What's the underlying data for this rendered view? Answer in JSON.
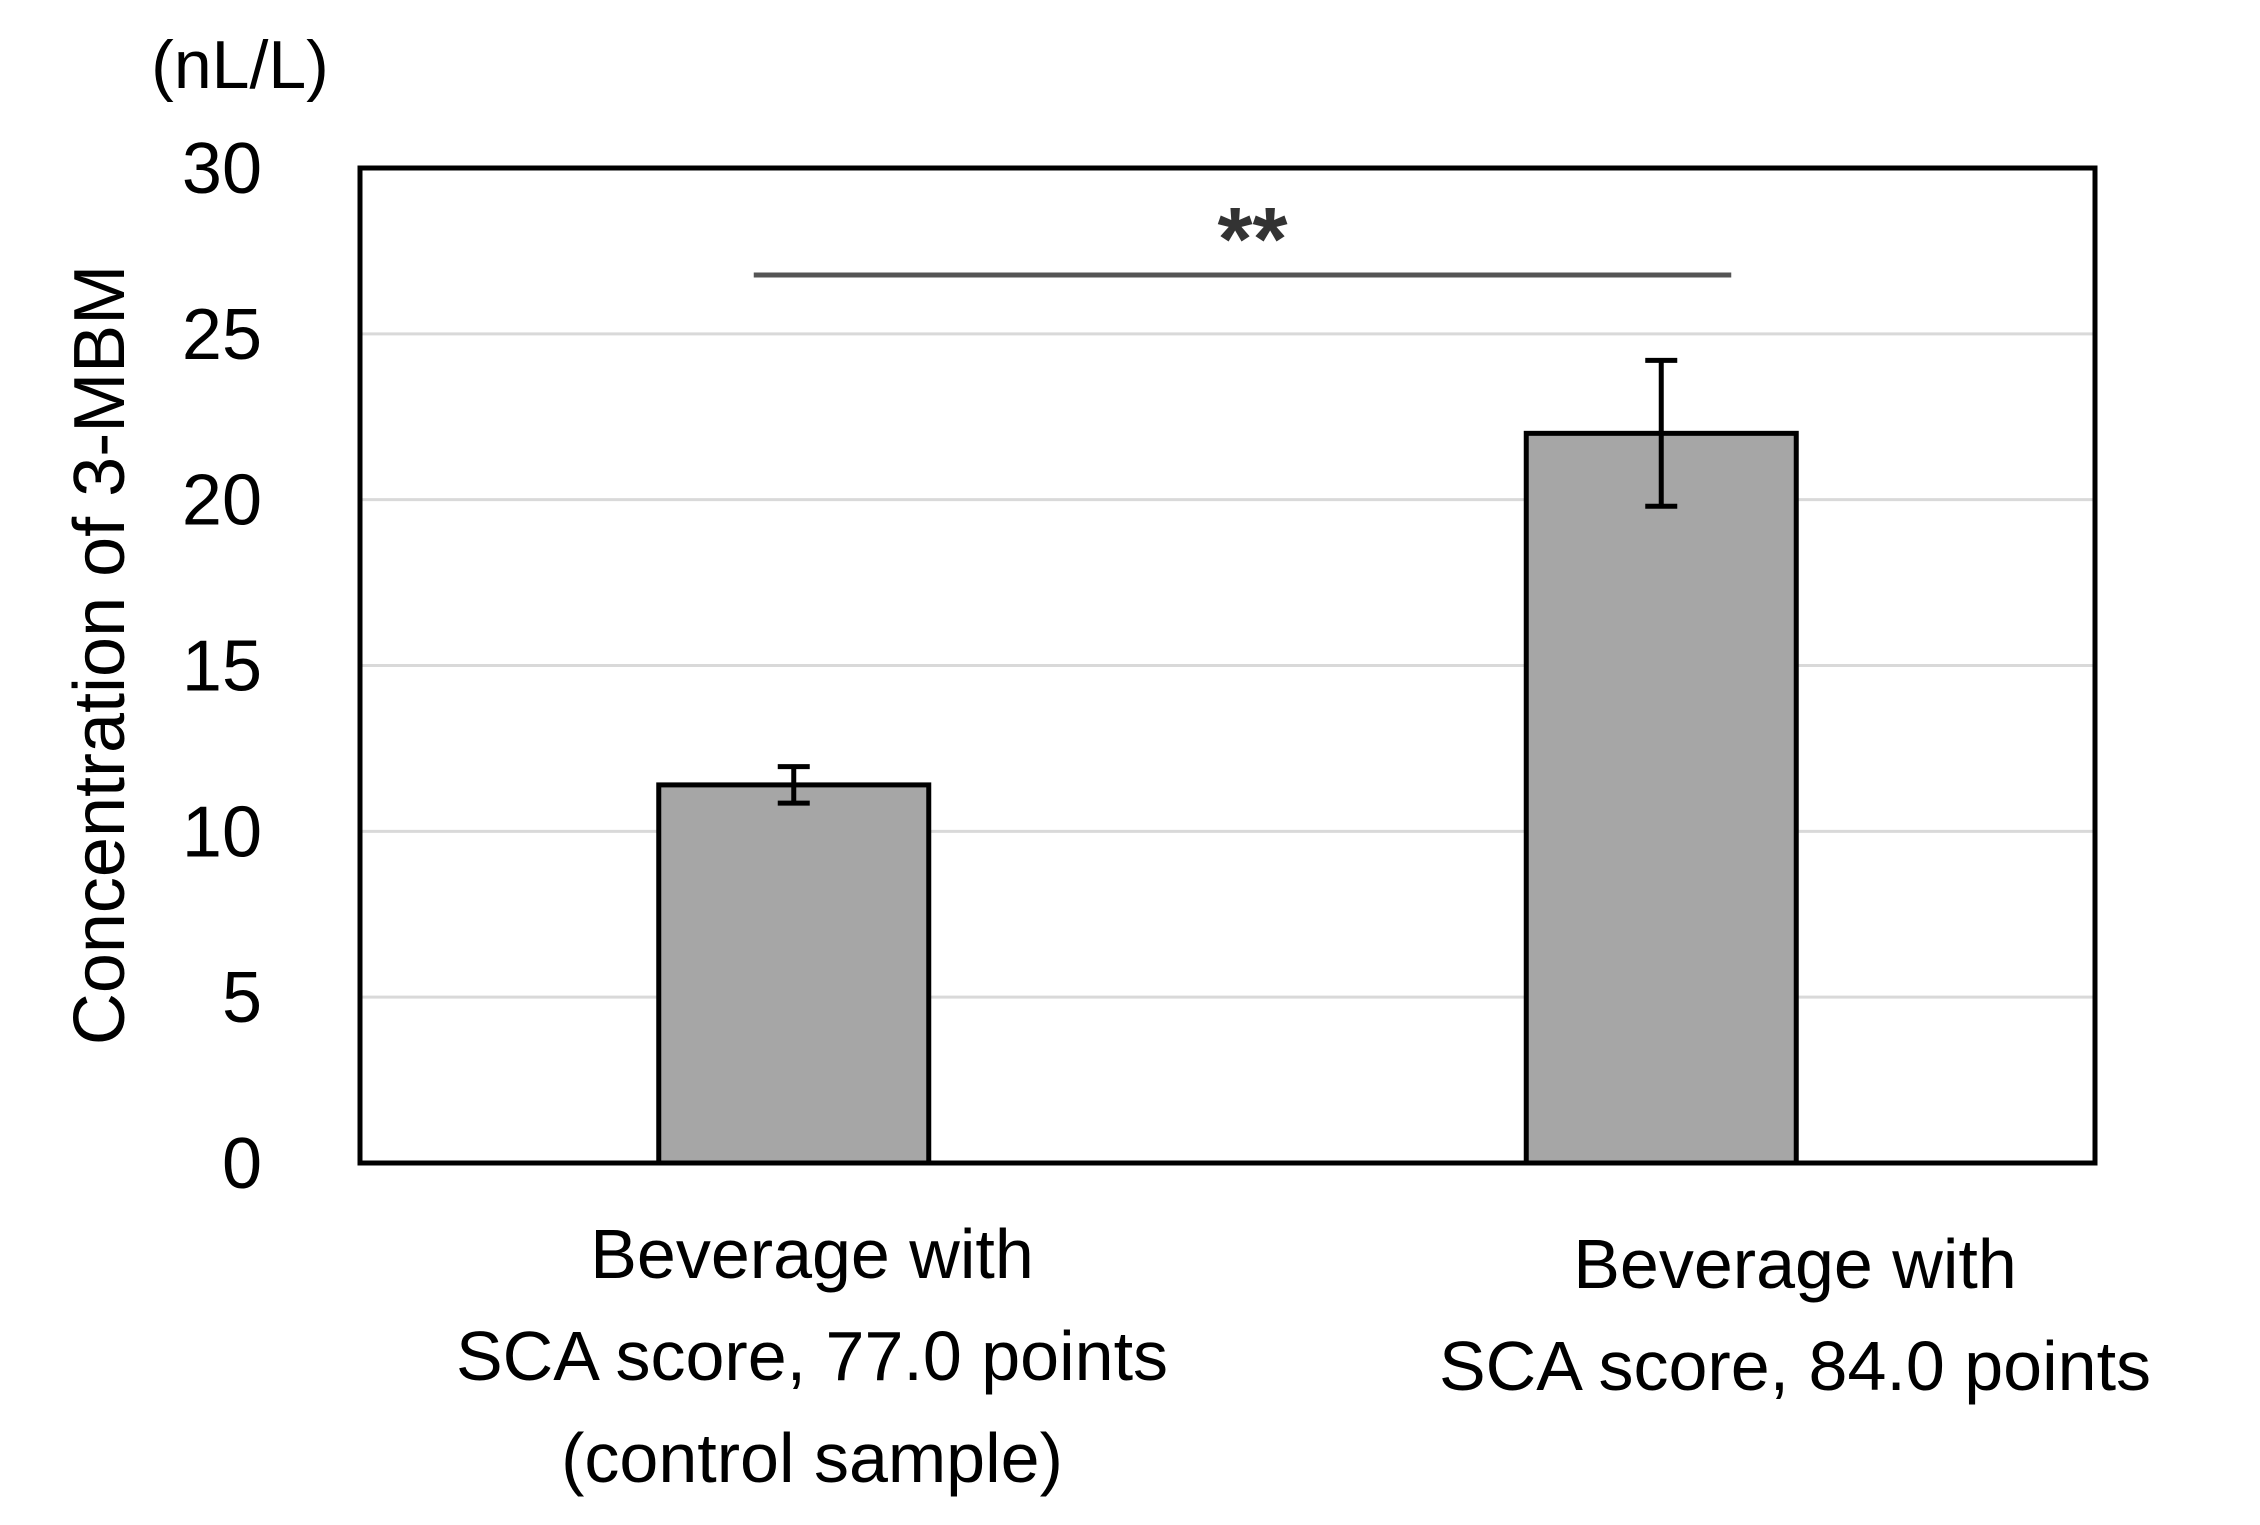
{
  "chart_data": {
    "type": "bar",
    "unit_label": "(nL/L)",
    "ylabel": "Concentration of 3-MBM",
    "xlabel": "",
    "ylim": [
      0,
      30
    ],
    "yticks": [
      0,
      5,
      10,
      15,
      20,
      25,
      30
    ],
    "grid": true,
    "categories": [
      [
        "Beverage with",
        "SCA score, 77.0 points",
        "(control sample)"
      ],
      [
        "Beverage with",
        "SCA score, 84.0 points"
      ]
    ],
    "values": [
      11.4,
      22.0
    ],
    "error": [
      0.55,
      2.2
    ],
    "bar_color": "#a6a6a6",
    "significance": {
      "between": [
        0,
        1
      ],
      "label": "**"
    }
  }
}
